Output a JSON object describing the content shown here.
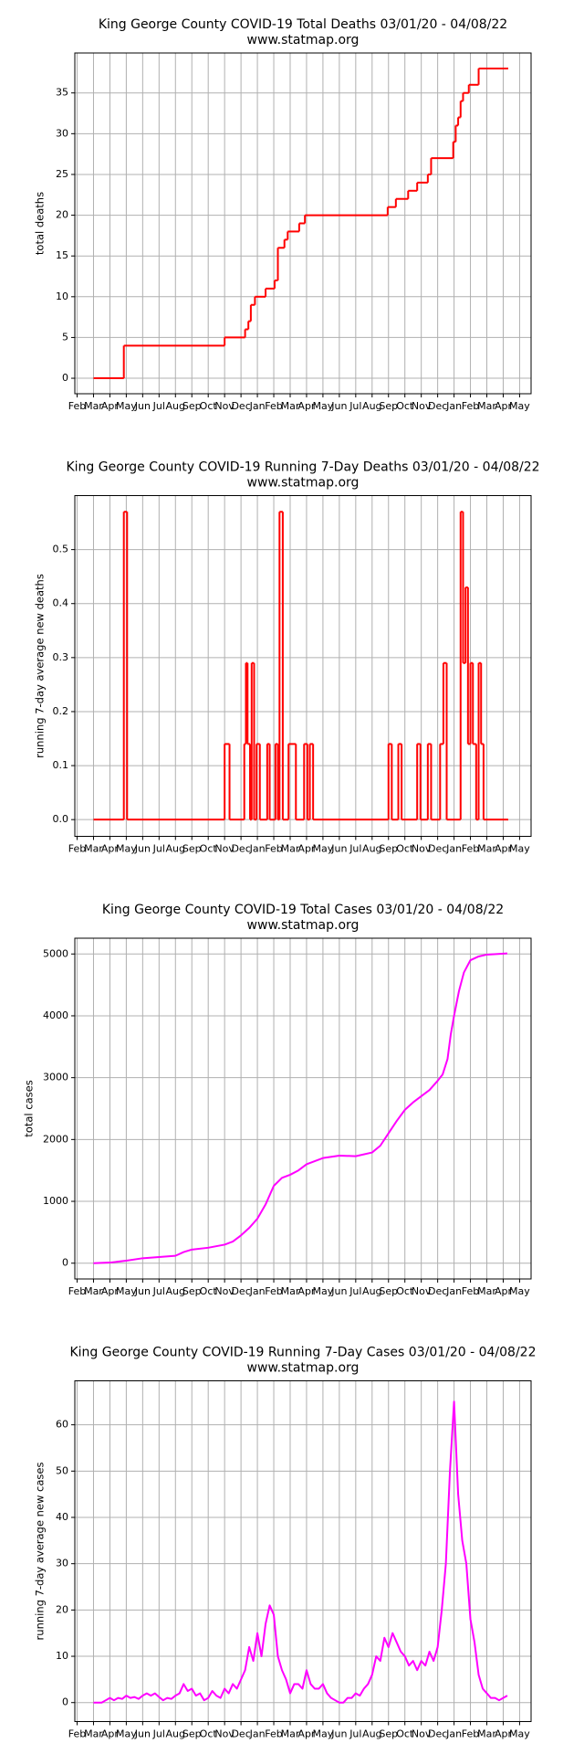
{
  "chart_data": [
    {
      "type": "line",
      "drawstyle": "steps-post",
      "title": "King George County COVID-19 Total Deaths 03/01/20 - 04/08/22",
      "subtitle": "www.statmap.org",
      "ylabel": "total deaths",
      "color": "#ff0000",
      "grid": true,
      "x": [
        1,
        2.85,
        9.0,
        10.25,
        10.45,
        10.6,
        10.85,
        11.5,
        12.05,
        12.25,
        12.65,
        12.85,
        13.55,
        13.9,
        18.95,
        19.45,
        20.2,
        20.75,
        21.4,
        21.6,
        22.95,
        23.1,
        23.25,
        23.4,
        23.55,
        23.9,
        24.5,
        26.25
      ],
      "values": [
        0,
        4,
        5,
        6,
        7,
        9,
        10,
        11,
        12,
        16,
        17,
        18,
        19,
        20,
        21,
        22,
        23,
        24,
        25,
        27,
        29,
        31,
        32,
        34,
        35,
        36,
        38,
        38
      ],
      "xlim": [
        -0.14,
        27.7
      ],
      "ylim": [
        -1.9,
        39.9
      ],
      "yticks": [
        0,
        5,
        10,
        15,
        20,
        25,
        30,
        35
      ],
      "xticks": [
        {
          "value": 0,
          "label": "Feb"
        },
        {
          "value": 1,
          "label": "Mar"
        },
        {
          "value": 2,
          "label": "Apr"
        },
        {
          "value": 3,
          "label": "May"
        },
        {
          "value": 4,
          "label": "Jun"
        },
        {
          "value": 5,
          "label": "Jul"
        },
        {
          "value": 6,
          "label": "Aug"
        },
        {
          "value": 7,
          "label": "Sep"
        },
        {
          "value": 8,
          "label": "Oct"
        },
        {
          "value": 9,
          "label": "Nov"
        },
        {
          "value": 10,
          "label": "Dec"
        },
        {
          "value": 11,
          "label": "Jan"
        },
        {
          "value": 12,
          "label": "Feb"
        },
        {
          "value": 13,
          "label": "Mar"
        },
        {
          "value": 14,
          "label": "Apr"
        },
        {
          "value": 15,
          "label": "May"
        },
        {
          "value": 16,
          "label": "Jun"
        },
        {
          "value": 17,
          "label": "Jul"
        },
        {
          "value": 18,
          "label": "Aug"
        },
        {
          "value": 19,
          "label": "Sep"
        },
        {
          "value": 20,
          "label": "Oct"
        },
        {
          "value": 21,
          "label": "Nov"
        },
        {
          "value": 22,
          "label": "Dec"
        },
        {
          "value": 23,
          "label": "Jan"
        },
        {
          "value": 24,
          "label": "Feb"
        },
        {
          "value": 25,
          "label": "Mar"
        },
        {
          "value": 26,
          "label": "Apr"
        },
        {
          "value": 27,
          "label": "May"
        }
      ]
    },
    {
      "type": "line",
      "drawstyle": "steps-post",
      "title": "King George County COVID-19 Running 7-Day Deaths 03/01/20 - 04/08/22",
      "subtitle": "www.statmap.org",
      "ylabel": "running 7-day average new deaths",
      "color": "#ff0000",
      "grid": true,
      "x": [
        1,
        2.85,
        3.05,
        9.0,
        9.3,
        10.2,
        10.3,
        10.4,
        10.55,
        10.65,
        10.8,
        10.95,
        11.15,
        11.6,
        11.75,
        12.1,
        12.25,
        12.35,
        12.55,
        12.9,
        13.35,
        13.85,
        14.05,
        14.2,
        14.4,
        19.0,
        19.2,
        19.6,
        19.8,
        20.75,
        20.95,
        21.4,
        21.6,
        22.15,
        22.35,
        22.55,
        23.4,
        23.55,
        23.7,
        23.85,
        24.0,
        24.15,
        24.35,
        24.5,
        24.65,
        24.8,
        26.25
      ],
      "values": [
        0,
        0.57,
        0,
        0.14,
        0,
        0.14,
        0.29,
        0.14,
        0,
        0.29,
        0,
        0.14,
        0,
        0.14,
        0,
        0.14,
        0,
        0.57,
        0,
        0.14,
        0,
        0.14,
        0,
        0.14,
        0,
        0.14,
        0,
        0.14,
        0,
        0.14,
        0,
        0.14,
        0,
        0.14,
        0.29,
        0,
        0.57,
        0.29,
        0.43,
        0.14,
        0.29,
        0.14,
        0,
        0.29,
        0.14,
        0,
        0
      ],
      "xlim": [
        -0.14,
        27.7
      ],
      "ylim": [
        -0.031,
        0.6
      ],
      "yticks": [
        {
          "value": 0,
          "label": "0.0"
        },
        {
          "value": 0.1,
          "label": "0.1"
        },
        {
          "value": 0.2,
          "label": "0.2"
        },
        {
          "value": 0.3,
          "label": "0.3"
        },
        {
          "value": 0.4,
          "label": "0.4"
        },
        {
          "value": 0.5,
          "label": "0.5"
        }
      ],
      "xticks": [
        {
          "value": 0,
          "label": "Feb"
        },
        {
          "value": 1,
          "label": "Mar"
        },
        {
          "value": 2,
          "label": "Apr"
        },
        {
          "value": 3,
          "label": "May"
        },
        {
          "value": 4,
          "label": "Jun"
        },
        {
          "value": 5,
          "label": "Jul"
        },
        {
          "value": 6,
          "label": "Aug"
        },
        {
          "value": 7,
          "label": "Sep"
        },
        {
          "value": 8,
          "label": "Oct"
        },
        {
          "value": 9,
          "label": "Nov"
        },
        {
          "value": 10,
          "label": "Dec"
        },
        {
          "value": 11,
          "label": "Jan"
        },
        {
          "value": 12,
          "label": "Feb"
        },
        {
          "value": 13,
          "label": "Mar"
        },
        {
          "value": 14,
          "label": "Apr"
        },
        {
          "value": 15,
          "label": "May"
        },
        {
          "value": 16,
          "label": "Jun"
        },
        {
          "value": 17,
          "label": "Jul"
        },
        {
          "value": 18,
          "label": "Aug"
        },
        {
          "value": 19,
          "label": "Sep"
        },
        {
          "value": 20,
          "label": "Oct"
        },
        {
          "value": 21,
          "label": "Nov"
        },
        {
          "value": 22,
          "label": "Dec"
        },
        {
          "value": 23,
          "label": "Jan"
        },
        {
          "value": 24,
          "label": "Feb"
        },
        {
          "value": 25,
          "label": "Mar"
        },
        {
          "value": 26,
          "label": "Apr"
        },
        {
          "value": 27,
          "label": "May"
        }
      ]
    },
    {
      "type": "line",
      "title": "King George County COVID-19 Total Cases 03/01/20 - 04/08/22",
      "subtitle": "www.statmap.org",
      "ylabel": "total cases",
      "color": "#ff00ff",
      "grid": true,
      "x": [
        1,
        2,
        3,
        4,
        5,
        6,
        6.5,
        7,
        8,
        9,
        9.5,
        10,
        10.5,
        11,
        11.5,
        12,
        12.5,
        13,
        13.5,
        14,
        15,
        16,
        17,
        18,
        18.5,
        19,
        19.5,
        20,
        20.5,
        21,
        21.5,
        22,
        22.3,
        22.6,
        22.8,
        23,
        23.3,
        23.6,
        24,
        24.5,
        25,
        26.25
      ],
      "values": [
        0,
        10,
        40,
        80,
        100,
        120,
        180,
        220,
        250,
        300,
        350,
        450,
        570,
        720,
        950,
        1250,
        1380,
        1430,
        1500,
        1600,
        1700,
        1740,
        1730,
        1790,
        1900,
        2100,
        2300,
        2480,
        2600,
        2700,
        2800,
        2950,
        3050,
        3300,
        3700,
        4000,
        4400,
        4700,
        4900,
        4960,
        4990,
        5010
      ],
      "xlim": [
        -0.14,
        27.7
      ],
      "ylim": [
        -255,
        5255
      ],
      "yticks": [
        0,
        1000,
        2000,
        3000,
        4000,
        5000
      ],
      "xticks": [
        {
          "value": 0,
          "label": "Feb"
        },
        {
          "value": 1,
          "label": "Mar"
        },
        {
          "value": 2,
          "label": "Apr"
        },
        {
          "value": 3,
          "label": "May"
        },
        {
          "value": 4,
          "label": "Jun"
        },
        {
          "value": 5,
          "label": "Jul"
        },
        {
          "value": 6,
          "label": "Aug"
        },
        {
          "value": 7,
          "label": "Sep"
        },
        {
          "value": 8,
          "label": "Oct"
        },
        {
          "value": 9,
          "label": "Nov"
        },
        {
          "value": 10,
          "label": "Dec"
        },
        {
          "value": 11,
          "label": "Jan"
        },
        {
          "value": 12,
          "label": "Feb"
        },
        {
          "value": 13,
          "label": "Mar"
        },
        {
          "value": 14,
          "label": "Apr"
        },
        {
          "value": 15,
          "label": "May"
        },
        {
          "value": 16,
          "label": "Jun"
        },
        {
          "value": 17,
          "label": "Jul"
        },
        {
          "value": 18,
          "label": "Aug"
        },
        {
          "value": 19,
          "label": "Sep"
        },
        {
          "value": 20,
          "label": "Oct"
        },
        {
          "value": 21,
          "label": "Nov"
        },
        {
          "value": 22,
          "label": "Dec"
        },
        {
          "value": 23,
          "label": "Jan"
        },
        {
          "value": 24,
          "label": "Feb"
        },
        {
          "value": 25,
          "label": "Mar"
        },
        {
          "value": 26,
          "label": "Apr"
        },
        {
          "value": 27,
          "label": "May"
        }
      ]
    },
    {
      "type": "line",
      "title": "King George County COVID-19 Running 7-Day Cases 03/01/20 - 04/08/22",
      "subtitle": "www.statmap.org",
      "ylabel": "running 7-day average new cases",
      "color": "#ff00ff",
      "grid": true,
      "x": [
        1,
        1.25,
        1.5,
        1.75,
        2,
        2.25,
        2.5,
        2.75,
        3,
        3.25,
        3.5,
        3.75,
        4,
        4.25,
        4.5,
        4.75,
        5,
        5.25,
        5.5,
        5.75,
        6,
        6.25,
        6.5,
        6.75,
        7,
        7.25,
        7.5,
        7.75,
        8,
        8.25,
        8.5,
        8.75,
        9,
        9.25,
        9.5,
        9.75,
        10,
        10.25,
        10.5,
        10.75,
        11,
        11.25,
        11.5,
        11.75,
        12,
        12.25,
        12.5,
        12.75,
        13,
        13.25,
        13.5,
        13.75,
        14,
        14.25,
        14.5,
        14.75,
        15,
        15.25,
        15.5,
        15.75,
        16,
        16.25,
        16.5,
        16.75,
        17,
        17.25,
        17.5,
        17.75,
        18,
        18.25,
        18.5,
        18.75,
        19,
        19.25,
        19.5,
        19.75,
        20,
        20.25,
        20.5,
        20.75,
        21,
        21.25,
        21.5,
        21.75,
        22,
        22.25,
        22.5,
        22.75,
        23,
        23.25,
        23.5,
        23.75,
        24,
        24.25,
        24.5,
        24.75,
        25,
        25.25,
        25.5,
        25.75,
        26,
        26.25
      ],
      "values": [
        0,
        0,
        0,
        0.5,
        1,
        0.5,
        1,
        0.8,
        1.5,
        1,
        1.2,
        0.8,
        1.5,
        2,
        1.5,
        2,
        1.2,
        0.5,
        1,
        0.8,
        1.5,
        2,
        4,
        2.5,
        3,
        1.5,
        2,
        0.5,
        1,
        2.5,
        1.5,
        1,
        3,
        2,
        4,
        3,
        5,
        7,
        12,
        9,
        15,
        10,
        17,
        21,
        19,
        10,
        7,
        5,
        2,
        4,
        4,
        3,
        7,
        4,
        3,
        3,
        4,
        2,
        1,
        0.5,
        0,
        0,
        1,
        1,
        2,
        1.5,
        3,
        4,
        6,
        10,
        9,
        14,
        12,
        15,
        13,
        11,
        10,
        8,
        9,
        7,
        9,
        8,
        11,
        9,
        12,
        20,
        30,
        50,
        65,
        45,
        35,
        30,
        18,
        13,
        6,
        3,
        2,
        1,
        1,
        0.5,
        1,
        1.5
      ],
      "xlim": [
        -0.14,
        27.7
      ],
      "ylim": [
        -4.1,
        69.5
      ],
      "yticks": [
        0,
        10,
        20,
        30,
        40,
        50,
        60
      ],
      "xticks": [
        {
          "value": 0,
          "label": "Feb"
        },
        {
          "value": 1,
          "label": "Mar"
        },
        {
          "value": 2,
          "label": "Apr"
        },
        {
          "value": 3,
          "label": "May"
        },
        {
          "value": 4,
          "label": "Jun"
        },
        {
          "value": 5,
          "label": "Jul"
        },
        {
          "value": 6,
          "label": "Aug"
        },
        {
          "value": 7,
          "label": "Sep"
        },
        {
          "value": 8,
          "label": "Oct"
        },
        {
          "value": 9,
          "label": "Nov"
        },
        {
          "value": 10,
          "label": "Dec"
        },
        {
          "value": 11,
          "label": "Jan"
        },
        {
          "value": 12,
          "label": "Feb"
        },
        {
          "value": 13,
          "label": "Mar"
        },
        {
          "value": 14,
          "label": "Apr"
        },
        {
          "value": 15,
          "label": "May"
        },
        {
          "value": 16,
          "label": "Jun"
        },
        {
          "value": 17,
          "label": "Jul"
        },
        {
          "value": 18,
          "label": "Aug"
        },
        {
          "value": 19,
          "label": "Sep"
        },
        {
          "value": 20,
          "label": "Oct"
        },
        {
          "value": 21,
          "label": "Nov"
        },
        {
          "value": 22,
          "label": "Dec"
        },
        {
          "value": 23,
          "label": "Jan"
        },
        {
          "value": 24,
          "label": "Feb"
        },
        {
          "value": 25,
          "label": "Mar"
        },
        {
          "value": 26,
          "label": "Apr"
        },
        {
          "value": 27,
          "label": "May"
        }
      ]
    }
  ]
}
